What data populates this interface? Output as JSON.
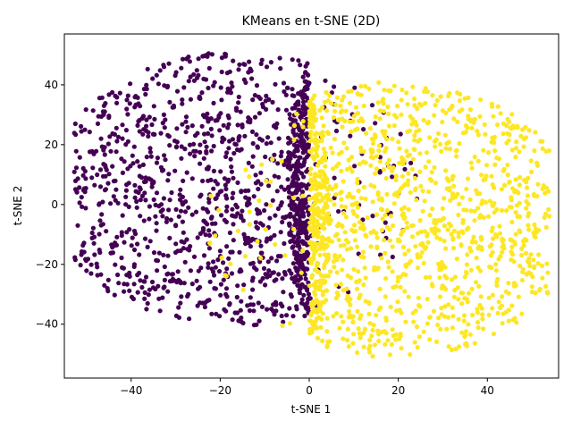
{
  "chart_data": {
    "type": "scatter",
    "title": "KMeans en t-SNE (2D)",
    "xlabel": "t-SNE 1",
    "ylabel": "t-SNE 2",
    "xlim": [
      -55,
      56
    ],
    "ylim": [
      -58,
      57
    ],
    "x_ticks": [
      -40,
      -20,
      0,
      20,
      40
    ],
    "y_ticks": [
      -40,
      -20,
      0,
      20,
      40
    ],
    "grid": false,
    "legend": "none",
    "series": [
      {
        "color": "#440154",
        "cluster_shape": "left half of a disk",
        "center": [
          -17,
          5
        ],
        "radius": 40,
        "count": 1400
      },
      {
        "color": "#fde725",
        "cluster_shape": "right half of a disk",
        "center": [
          19,
          -5
        ],
        "radius": 40,
        "count": 1400
      }
    ],
    "series_colors_note": "viridis endpoints"
  }
}
